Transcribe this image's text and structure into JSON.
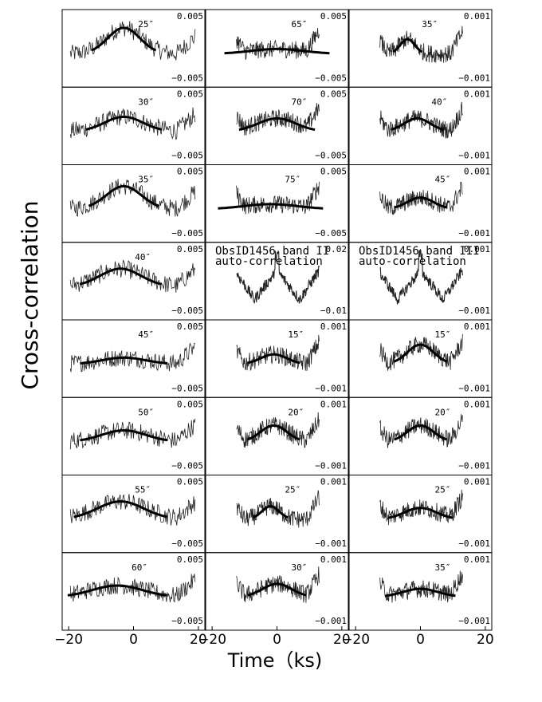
{
  "figure": {
    "ylabel": "Cross-correlation",
    "xlabel": "Time（ks)"
  },
  "chart_data": {
    "type": "line",
    "xlabel": "Time（ks)",
    "ylabel": "Cross-correlation",
    "xlim": [
      -22,
      22
    ],
    "x_ticks": [
      -20,
      0,
      20
    ],
    "x_tick_labels": [
      "−20",
      "0",
      "20"
    ],
    "columns": [
      {
        "panels": [
          {
            "label": "25″",
            "ymax_label": "0.005",
            "ymin_label": "−0.005",
            "peak_x": -3,
            "amp": 0.8,
            "width": 5.5
          },
          {
            "label": "30″",
            "ymax_label": "0.005",
            "ymin_label": "−0.005",
            "peak_x": -3,
            "amp": 0.45,
            "width": 6.5
          },
          {
            "label": "35″",
            "ymax_label": "0.005",
            "ymin_label": "−0.005",
            "peak_x": -3,
            "amp": 0.7,
            "width": 6.0
          },
          {
            "label": "40″",
            "ymax_label": "0.005",
            "ymin_label": "−0.005",
            "peak_x": -4,
            "amp": 0.55,
            "width": 7.0
          },
          {
            "label": "45″",
            "ymax_label": "0.005",
            "ymin_label": "−0.005",
            "peak_x": -3,
            "amp": 0.2,
            "width": 7.5
          },
          {
            "label": "50″",
            "ymax_label": "0.005",
            "ymin_label": "−0.005",
            "peak_x": -3,
            "amp": 0.35,
            "width": 7.5
          },
          {
            "label": "55″",
            "ymax_label": "0.005",
            "ymin_label": "−0.005",
            "peak_x": -4,
            "amp": 0.55,
            "width": 8.0
          },
          {
            "label": "60″",
            "ymax_label": "0.005",
            "ymin_label": "−0.005",
            "peak_x": -5,
            "amp": 0.35,
            "width": 8.5
          }
        ]
      },
      {
        "panels": [
          {
            "label": "65″",
            "ymax_label": "0.005",
            "ymin_label": "−0.005",
            "peak_x": 0,
            "amp": 0.15,
            "width": 9.0
          },
          {
            "label": "70″",
            "ymax_label": "0.005",
            "ymin_label": "−0.005",
            "peak_x": 0,
            "amp": 0.4,
            "width": 6.5
          },
          {
            "label": "75″",
            "ymax_label": "0.005",
            "ymin_label": "−0.005",
            "peak_x": -2,
            "amp": 0.15,
            "width": 9.0
          },
          {
            "label": "ObsID1456 band II auto-correlation",
            "ymax_label": "0.02",
            "ymin_label": "−0.01",
            "peak_x": 0,
            "amp": 0.5,
            "width": 1.0,
            "auto": true
          },
          {
            "label": "15″",
            "ymax_label": "0.001",
            "ymin_label": "−0.001",
            "peak_x": -1,
            "amp": 0.3,
            "width": 4.5
          },
          {
            "label": "20″",
            "ymax_label": "0.001",
            "ymin_label": "−0.001",
            "peak_x": -1,
            "amp": 0.5,
            "width": 4.5
          },
          {
            "label": "25″",
            "ymax_label": "0.001",
            "ymin_label": "−0.001",
            "peak_x": -2,
            "amp": 0.4,
            "width": 3.0
          },
          {
            "label": "30″",
            "ymax_label": "0.001",
            "ymin_label": "−0.001",
            "peak_x": 0,
            "amp": 0.4,
            "width": 5.0
          }
        ]
      },
      {
        "panels": [
          {
            "label": "35″",
            "ymax_label": "0.001",
            "ymin_label": "−0.001",
            "peak_x": -4,
            "amp": 0.45,
            "width": 2.5
          },
          {
            "label": "40″",
            "ymax_label": "0.001",
            "ymin_label": "−0.001",
            "peak_x": -1,
            "amp": 0.4,
            "width": 4.5
          },
          {
            "label": "45″",
            "ymax_label": "0.001",
            "ymin_label": "−0.001",
            "peak_x": 0,
            "amp": 0.35,
            "width": 4.5
          },
          {
            "label": "ObsID1456 band III auto-correlation",
            "ymax_label": "0.001",
            "ymin_label": "−0.001",
            "peak_x": 0,
            "amp": 0.5,
            "width": 1.0,
            "auto": true
          },
          {
            "label": "15″",
            "ymax_label": "0.001",
            "ymin_label": "−0.001",
            "peak_x": 0,
            "amp": 0.6,
            "width": 4.5
          },
          {
            "label": "20″",
            "ymax_label": "0.001",
            "ymin_label": "−0.001",
            "peak_x": 0,
            "amp": 0.5,
            "width": 4.5
          },
          {
            "label": "25″",
            "ymax_label": "0.001",
            "ymin_label": "−0.001",
            "peak_x": 0,
            "amp": 0.35,
            "width": 5.5
          },
          {
            "label": "35″",
            "ymax_label": "0.001",
            "ymin_label": "−0.001",
            "peak_x": 0,
            "amp": 0.25,
            "width": 6.0
          }
        ]
      }
    ]
  }
}
